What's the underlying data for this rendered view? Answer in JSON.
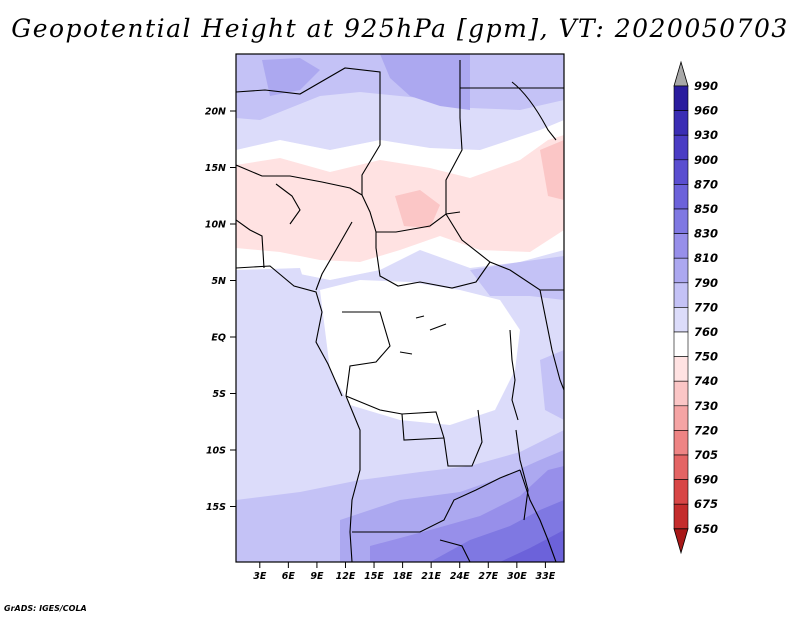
{
  "title": "Geopotential Height at 925hPa [gpm], VT: 2020050703",
  "credit": "GrADS: IGES/COLA",
  "map": {
    "lat_labels": [
      "20N",
      "15N",
      "10N",
      "5N",
      "EQ",
      "5S",
      "10S",
      "15S"
    ],
    "lon_labels": [
      "3E",
      "6E",
      "9E",
      "12E",
      "15E",
      "18E",
      "21E",
      "24E",
      "27E",
      "30E",
      "33E"
    ],
    "lat_values": [
      20,
      15,
      10,
      5,
      0,
      -5,
      -10,
      -15
    ],
    "lon_values": [
      3,
      6,
      9,
      12,
      15,
      18,
      21,
      24,
      27,
      30,
      33
    ]
  },
  "colorbar": {
    "labels": [
      "990",
      "960",
      "930",
      "900",
      "870",
      "850",
      "830",
      "810",
      "790",
      "770",
      "760",
      "750",
      "740",
      "730",
      "720",
      "705",
      "690",
      "675",
      "650"
    ],
    "colors": [
      "#2a1c9e",
      "#3a2db4",
      "#4a3cc4",
      "#5a4ed0",
      "#6c62da",
      "#7f78e2",
      "#978fea",
      "#aca8f0",
      "#c4c2f6",
      "#dcdcfa",
      "#ffffff",
      "#ffe2e2",
      "#fbc6c6",
      "#f5a4a4",
      "#ee8484",
      "#e46464",
      "#d84646",
      "#c42c2c",
      "#a81818"
    ]
  }
}
